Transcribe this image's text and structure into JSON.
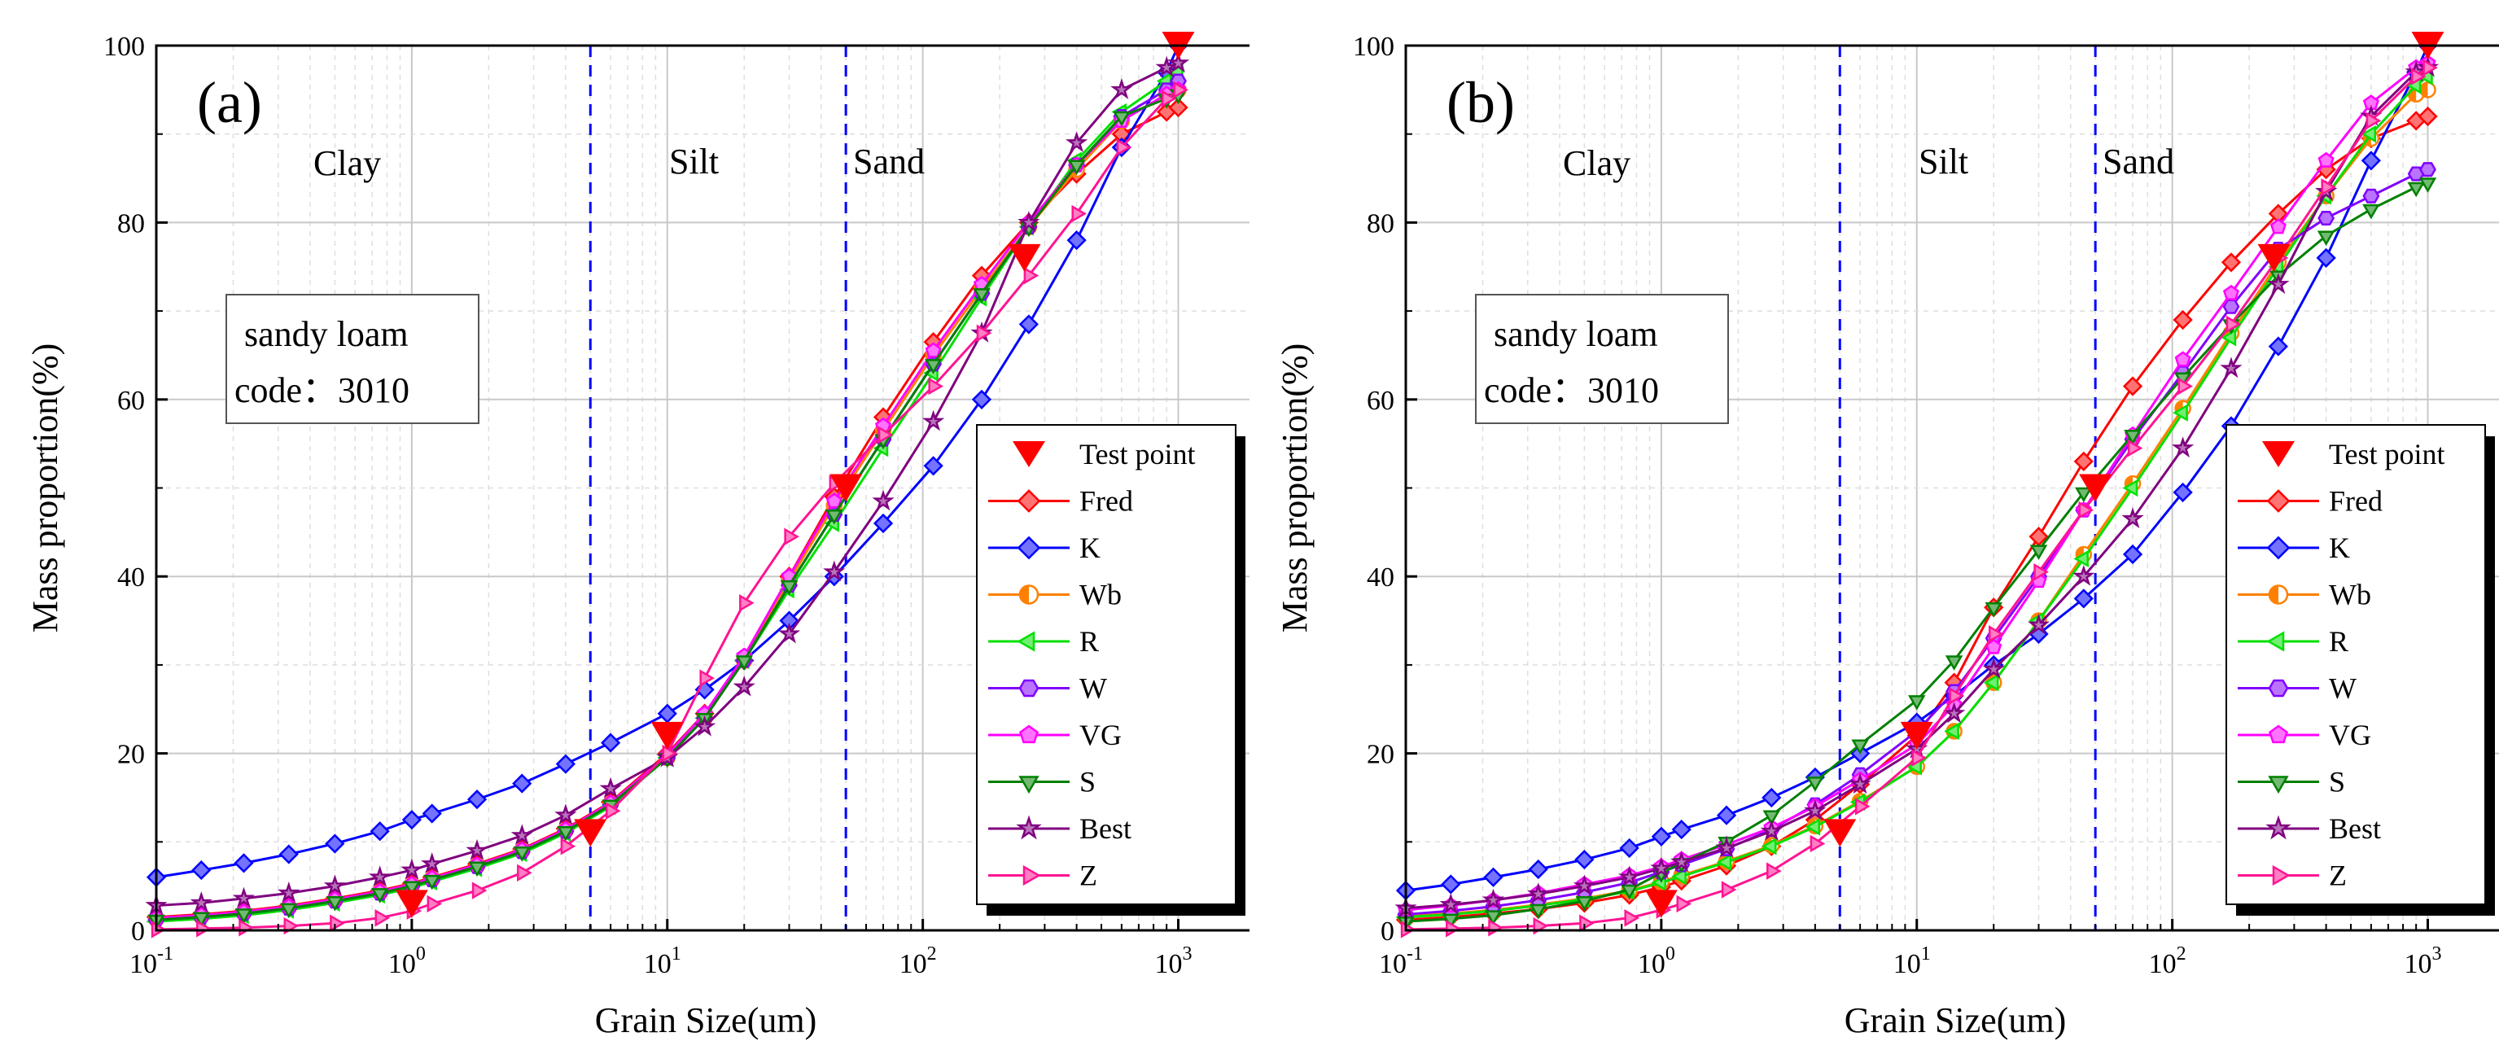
{
  "axes": {
    "xlabel": "Grain Size(um)",
    "ylabel": "Mass proportion(%)",
    "xlim": [
      0.1,
      2000
    ],
    "ylim": [
      0,
      100
    ],
    "xscale": "log",
    "ytick_labels": [
      "0",
      "20",
      "40",
      "60",
      "80",
      "100"
    ],
    "xtick_labels": [
      {
        "base": "10",
        "exp": "-1"
      },
      {
        "base": "10",
        "exp": "0"
      },
      {
        "base": "10",
        "exp": "1"
      },
      {
        "base": "10",
        "exp": "2"
      },
      {
        "base": "10",
        "exp": "3"
      }
    ]
  },
  "regions": {
    "clay": "Clay",
    "silt": "Silt",
    "sand": "Sand",
    "boundaries": [
      5,
      50
    ]
  },
  "info_box": {
    "line1": "sandy loam",
    "line2": "code：3010"
  },
  "legend": {
    "test_point": "Test point",
    "series_names": [
      "Fred",
      "K",
      "Wb",
      "R",
      "W",
      "VG",
      "S",
      "Best",
      "Z"
    ]
  },
  "colors": {
    "test_point": "#ff0000",
    "Fred": "#ff0000",
    "K": "#0000ff",
    "Wb": "#ff8000",
    "R": "#00e000",
    "W": "#8000ff",
    "VG": "#ff00ff",
    "S": "#008000",
    "Best": "#800080",
    "Z": "#ff1493",
    "boundary": "#0000ff"
  },
  "chart_data": [
    {
      "panel": "(a)",
      "type": "line",
      "x": [
        0.1,
        0.15,
        0.22,
        0.33,
        0.5,
        0.75,
        1,
        1.2,
        1.8,
        2.7,
        4,
        6,
        10,
        14,
        20,
        30,
        45,
        70,
        110,
        170,
        260,
        400,
        600,
        900,
        1000
      ],
      "test_points": {
        "x": [
          1,
          5,
          10,
          50,
          250,
          1000
        ],
        "y": [
          3,
          11,
          22,
          50,
          76,
          100
        ]
      },
      "series": [
        {
          "name": "Fred",
          "marker": "diamond",
          "values": [
            1.5,
            1.8,
            2.2,
            2.8,
            3.6,
            4.5,
            5.3,
            6,
            7.5,
            9.2,
            11.5,
            14.5,
            20,
            24.5,
            30.5,
            40,
            49,
            58,
            66.5,
            74,
            80,
            85.5,
            90,
            92.5,
            93
          ]
        },
        {
          "name": "K",
          "marker": "diamond",
          "values": [
            6,
            6.8,
            7.6,
            8.6,
            9.8,
            11.2,
            12.5,
            13.2,
            14.8,
            16.6,
            18.8,
            21.2,
            24.5,
            27.2,
            30.5,
            35,
            40,
            46,
            52.5,
            60,
            68.5,
            78,
            88.5,
            97,
            100
          ]
        },
        {
          "name": "Wb",
          "marker": "circle",
          "values": [
            1.3,
            1.6,
            2,
            2.6,
            3.4,
            4.3,
            5.1,
            5.8,
            7.3,
            9,
            11.3,
            14.3,
            19.5,
            24,
            30.5,
            39.5,
            48,
            56.5,
            65,
            72.5,
            79.5,
            86,
            91.5,
            94.5,
            95
          ]
        },
        {
          "name": "R",
          "marker": "triangle-left",
          "values": [
            1,
            1.3,
            1.7,
            2.3,
            3.1,
            4,
            4.8,
            5.5,
            7,
            8.7,
            11,
            14,
            19.5,
            24,
            30.5,
            38.5,
            46,
            54.5,
            63,
            71.5,
            79.5,
            87,
            92.5,
            96,
            97
          ]
        },
        {
          "name": "W",
          "marker": "hexagon",
          "values": [
            1.2,
            1.5,
            1.9,
            2.5,
            3.3,
            4.2,
            5,
            5.7,
            7.2,
            8.9,
            11.2,
            14.2,
            19.5,
            24,
            30.5,
            39,
            47,
            55.5,
            64,
            72,
            79.5,
            86.5,
            92,
            95,
            96
          ]
        },
        {
          "name": "VG",
          "marker": "pentagon",
          "values": [
            1.4,
            1.7,
            2.1,
            2.7,
            3.5,
            4.4,
            5.2,
            5.9,
            7.4,
            9.1,
            11.4,
            14.4,
            19.8,
            24.5,
            31,
            40,
            48.5,
            57,
            65.5,
            73,
            80,
            86.5,
            91.5,
            94.5,
            95
          ]
        },
        {
          "name": "S",
          "marker": "triangle-down",
          "values": [
            1.2,
            1.5,
            1.9,
            2.5,
            3.3,
            4.2,
            5,
            5.7,
            7.2,
            8.9,
            11.2,
            14.2,
            19.5,
            24,
            30.5,
            39,
            47,
            55.5,
            64,
            72,
            79.5,
            86.5,
            92,
            94,
            94.5
          ]
        },
        {
          "name": "Best",
          "marker": "star",
          "values": [
            2.8,
            3.1,
            3.6,
            4.2,
            5,
            6,
            6.8,
            7.5,
            9,
            10.7,
            13,
            16,
            19.5,
            23,
            27.5,
            33.5,
            40.5,
            48.5,
            57.5,
            67.5,
            80,
            89,
            95,
            97.5,
            98
          ]
        },
        {
          "name": "Z",
          "marker": "triangle-right",
          "values": [
            0.1,
            0.2,
            0.3,
            0.5,
            0.8,
            1.4,
            2.2,
            3,
            4.5,
            6.5,
            9.5,
            13.5,
            20,
            28.5,
            37,
            44.5,
            50.5,
            56,
            61.5,
            67.5,
            74,
            81,
            88.5,
            94,
            95
          ]
        }
      ]
    },
    {
      "panel": "(b)",
      "type": "line",
      "x": [
        0.1,
        0.15,
        0.22,
        0.33,
        0.5,
        0.75,
        1,
        1.2,
        1.8,
        2.7,
        4,
        6,
        10,
        14,
        20,
        30,
        45,
        70,
        110,
        170,
        260,
        400,
        600,
        900,
        1000
      ],
      "test_points": {
        "x": [
          1,
          5,
          10,
          50,
          250,
          1000
        ],
        "y": [
          3,
          11,
          22,
          50,
          76,
          100
        ]
      },
      "series": [
        {
          "name": "Fred",
          "marker": "diamond",
          "values": [
            1.2,
            1.5,
            1.9,
            2.4,
            3.1,
            4,
            4.9,
            5.6,
            7.3,
            9.5,
            12.5,
            16.5,
            22,
            28,
            36.5,
            44.5,
            53,
            61.5,
            69,
            75.5,
            81,
            86,
            89.5,
            91.5,
            92
          ]
        },
        {
          "name": "K",
          "marker": "diamond",
          "values": [
            4.5,
            5.2,
            6,
            6.9,
            8,
            9.3,
            10.6,
            11.4,
            13,
            15,
            17.3,
            20,
            23.5,
            26.5,
            30,
            33.5,
            37.5,
            42.5,
            49.5,
            57,
            66,
            76,
            87,
            97,
            100
          ]
        },
        {
          "name": "Wb",
          "marker": "circle",
          "values": [
            1.6,
            1.9,
            2.3,
            2.9,
            3.6,
            4.5,
            5.5,
            6.2,
            7.8,
            9.6,
            11.8,
            14.6,
            18.5,
            22.5,
            28,
            35,
            42.5,
            50.5,
            59,
            67.5,
            75.5,
            83,
            89.5,
            94.5,
            95
          ]
        },
        {
          "name": "R",
          "marker": "triangle-left",
          "values": [
            1.5,
            1.8,
            2.2,
            2.8,
            3.5,
            4.4,
            5.4,
            6.1,
            7.7,
            9.5,
            11.7,
            14.5,
            18.5,
            22.5,
            28,
            35,
            42,
            50,
            58.5,
            67,
            75,
            83,
            90,
            95.5,
            96.5
          ]
        },
        {
          "name": "W",
          "marker": "hexagon",
          "values": [
            1.8,
            2.2,
            2.7,
            3.4,
            4.3,
            5.4,
            6.6,
            7.4,
            9.2,
            11.4,
            14.2,
            17.6,
            22.5,
            27,
            33,
            40,
            47.5,
            55.5,
            63,
            70.5,
            77,
            80.5,
            83,
            85.5,
            86
          ]
        },
        {
          "name": "VG",
          "marker": "pentagon",
          "values": [
            2.3,
            2.8,
            3.4,
            4.2,
            5.2,
            6.2,
            7.2,
            8,
            9.7,
            11.6,
            14,
            17,
            21,
            25.5,
            32,
            39.5,
            47.5,
            56,
            64.5,
            72,
            79.5,
            87,
            93.5,
            97.5,
            98
          ]
        },
        {
          "name": "S",
          "marker": "triangle-down",
          "values": [
            1,
            1.3,
            1.7,
            2.4,
            3.3,
            4.6,
            6.5,
            7.6,
            10,
            13,
            16.8,
            21,
            26,
            30.5,
            36.5,
            43,
            49.5,
            56,
            62.5,
            68.5,
            74,
            78.5,
            81.5,
            84,
            84.5
          ]
        },
        {
          "name": "Best",
          "marker": "star",
          "values": [
            2.5,
            2.9,
            3.4,
            4.1,
            5,
            6,
            7,
            7.7,
            9.3,
            11.2,
            13.5,
            16.5,
            20.5,
            24.5,
            29.5,
            34.5,
            40,
            46.5,
            54.5,
            63.5,
            73,
            83.5,
            92,
            97,
            97.5
          ]
        },
        {
          "name": "Z",
          "marker": "triangle-right",
          "values": [
            0.1,
            0.2,
            0.3,
            0.5,
            0.8,
            1.4,
            2.3,
            3,
            4.6,
            6.7,
            9.8,
            14,
            19.5,
            26.5,
            33.5,
            40.5,
            47.5,
            54.5,
            61.5,
            68.5,
            76,
            84,
            91.5,
            96.5,
            97.5
          ]
        }
      ]
    }
  ]
}
